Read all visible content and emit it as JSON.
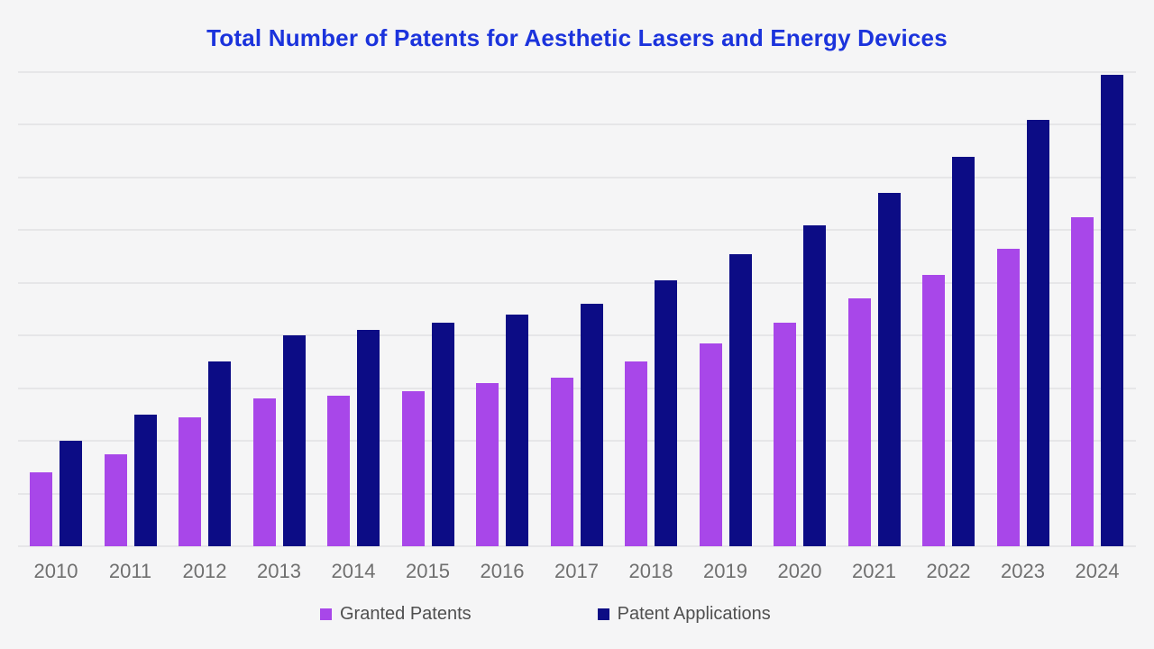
{
  "chart_data": {
    "type": "bar",
    "title": "Total Number of Patents for Aesthetic Lasers and Energy Devices",
    "categories": [
      "2010",
      "2011",
      "2012",
      "2013",
      "2014",
      "2015",
      "2016",
      "2017",
      "2018",
      "2019",
      "2020",
      "2021",
      "2022",
      "2023",
      "2024"
    ],
    "series": [
      {
        "name": "Granted Patents",
        "color": "#A847E9",
        "values": [
          140,
          175,
          245,
          280,
          285,
          295,
          310,
          320,
          350,
          385,
          425,
          470,
          515,
          565,
          625
        ]
      },
      {
        "name": "Patent Applications",
        "color": "#0C0C85",
        "values": [
          200,
          250,
          350,
          400,
          410,
          425,
          440,
          460,
          505,
          555,
          610,
          670,
          740,
          810,
          895
        ]
      }
    ],
    "xlabel": "",
    "ylabel": "",
    "ylim": [
      0,
      900
    ],
    "gridline_step": 100,
    "y_axis_labels_visible": false,
    "grid": "horizontal",
    "legend_position": "bottom"
  },
  "colors": {
    "page_background": "#F5F5F6",
    "title_text": "#1B33DC",
    "gridline": "#E6E6E8",
    "x_axis_label": "#6F6F6F",
    "legend_text": "#4F4F4F"
  }
}
